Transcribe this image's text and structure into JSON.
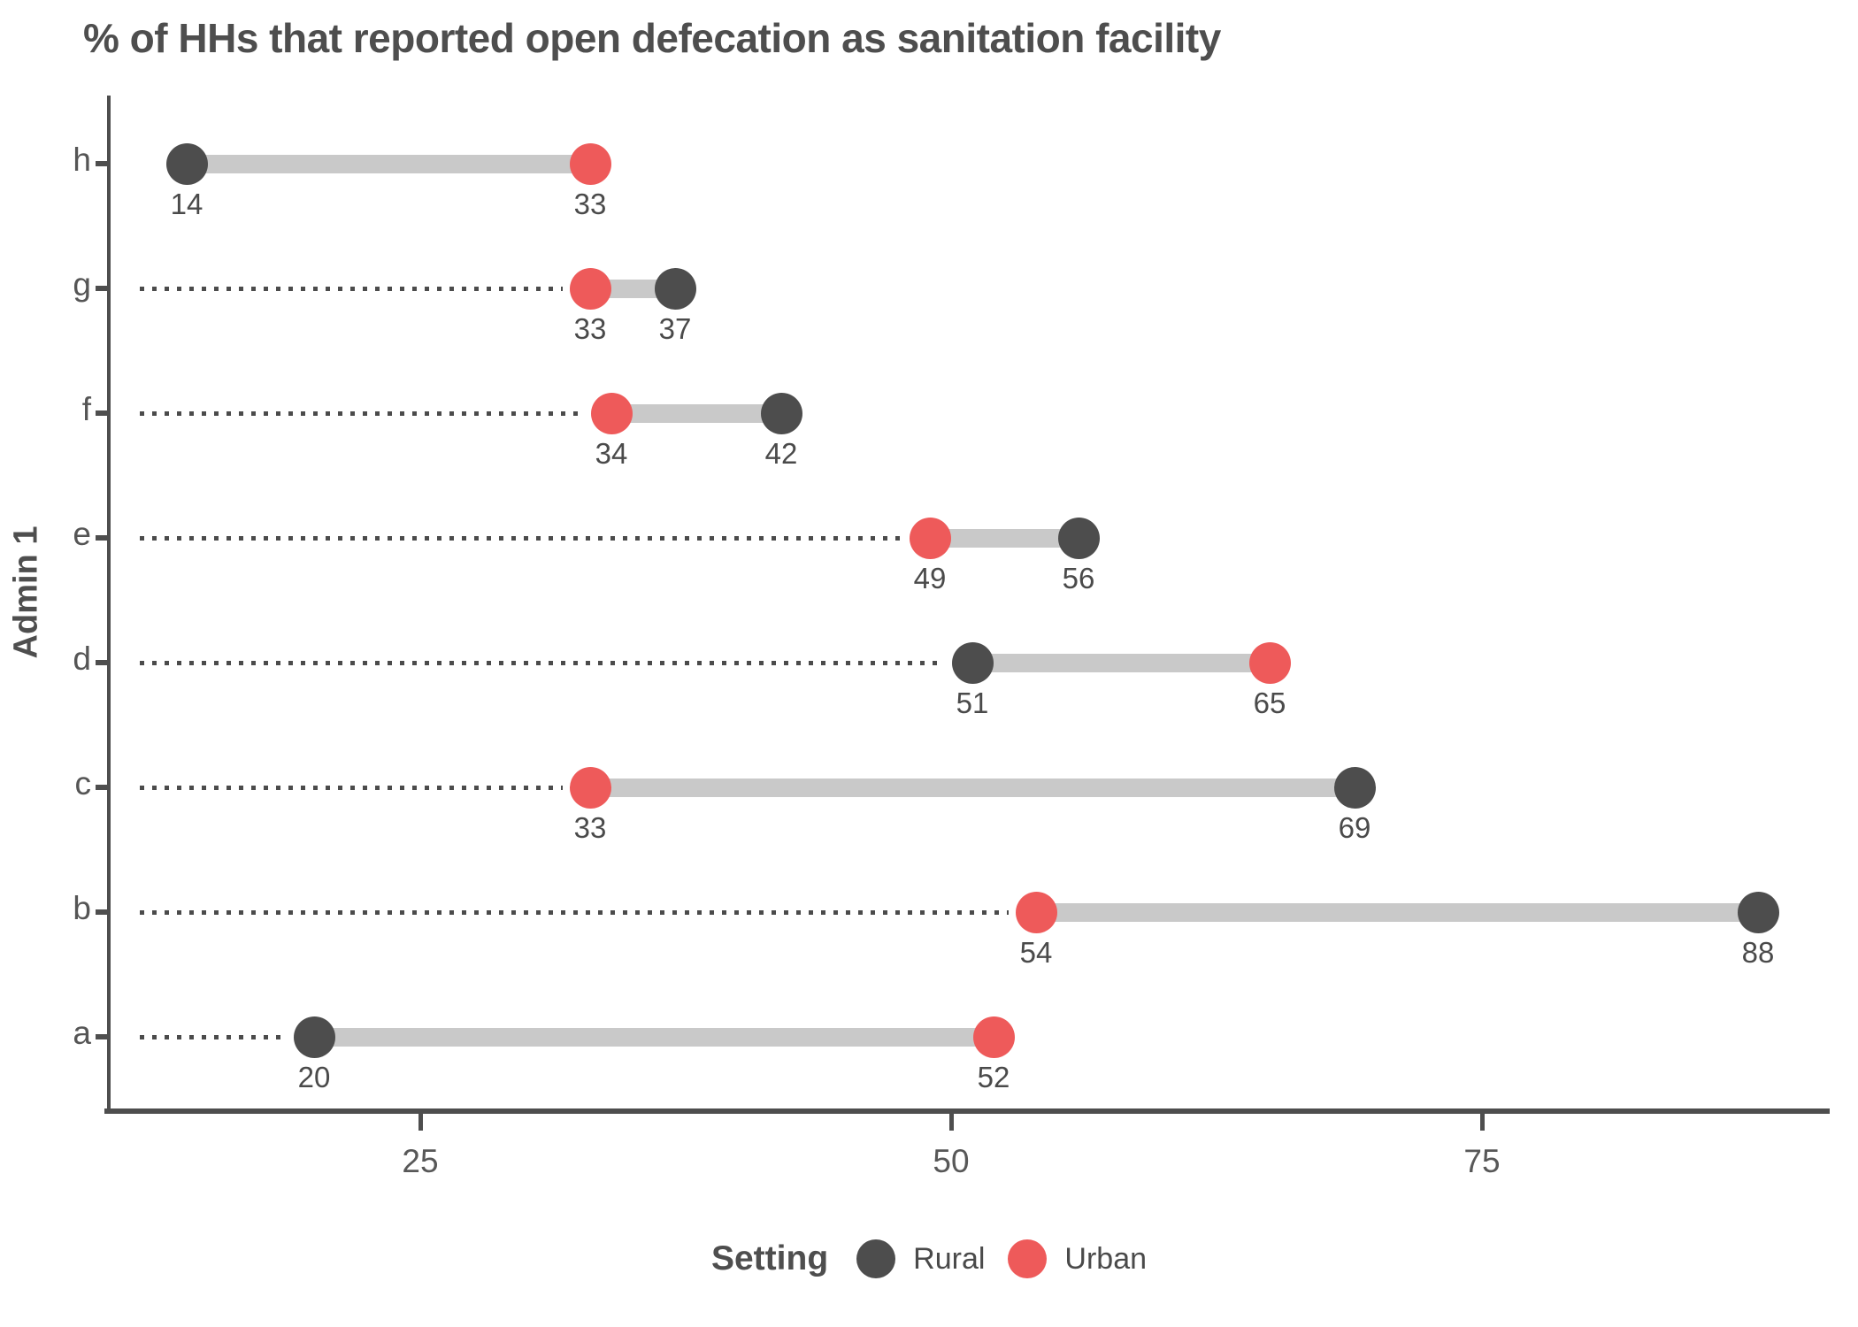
{
  "title": "% of HHs that reported open defecation as sanitation facility",
  "chart_data": {
    "type": "dumbbell",
    "title": "% of HHs that reported open defecation as sanitation facility",
    "xlabel": "",
    "ylabel": "Admin 1",
    "x_ticks": [
      25,
      50,
      75
    ],
    "x_range_shown": [
      10,
      92
    ],
    "grid": false,
    "categories": [
      "h",
      "g",
      "f",
      "e",
      "d",
      "c",
      "b",
      "a"
    ],
    "series": [
      {
        "name": "Rural",
        "color": "#4d4d4d",
        "values": [
          14,
          37,
          42,
          56,
          51,
          69,
          88,
          20
        ]
      },
      {
        "name": "Urban",
        "color": "#ee5a5a",
        "values": [
          33,
          33,
          34,
          49,
          65,
          33,
          54,
          52
        ]
      }
    ],
    "value_labels_shown": true,
    "connector_color": "#c9c9c9",
    "leader_line_style": "dotted",
    "legend": {
      "title": "Setting",
      "position": "bottom",
      "entries": [
        "Rural",
        "Urban"
      ]
    }
  }
}
